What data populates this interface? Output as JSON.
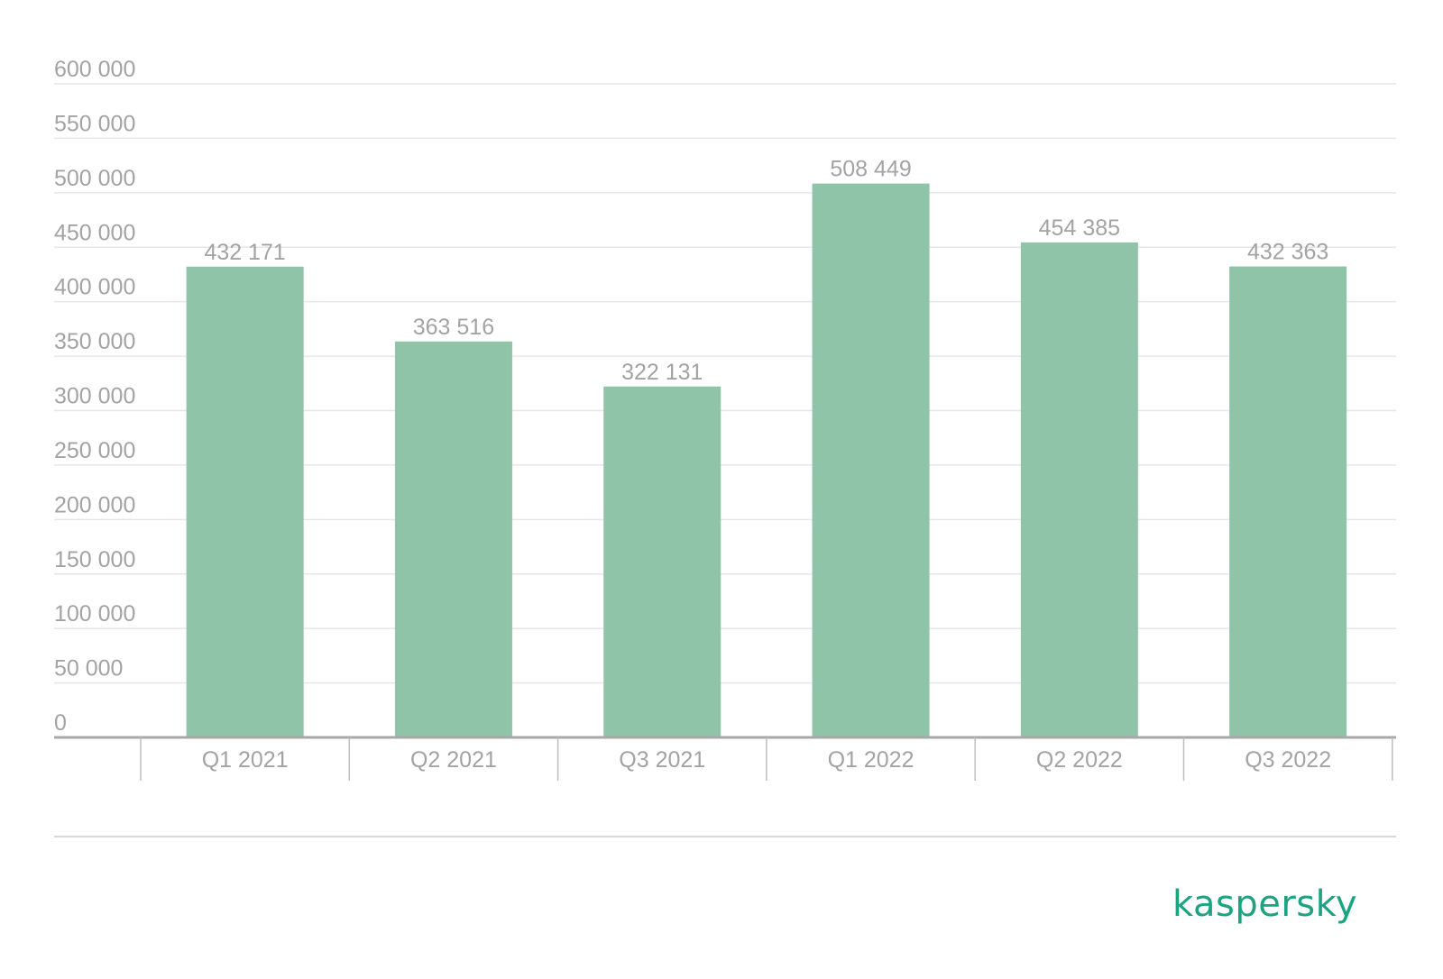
{
  "chart_data": {
    "type": "bar",
    "categories": [
      "Q1 2021",
      "Q2 2021",
      "Q3 2021",
      "Q1 2022",
      "Q2 2022",
      "Q3 2022"
    ],
    "values": [
      432171,
      363516,
      322131,
      508449,
      454385,
      432363
    ],
    "data_labels": [
      "432 171",
      "363 516",
      "322 131",
      "508 449",
      "454 385",
      "432 363"
    ],
    "y_ticks": [
      0,
      50000,
      100000,
      150000,
      200000,
      250000,
      300000,
      350000,
      400000,
      450000,
      500000,
      550000,
      600000
    ],
    "y_tick_labels": [
      "0",
      "50 000",
      "100 000",
      "150 000",
      "200 000",
      "250 000",
      "300 000",
      "350 000",
      "400 000",
      "450 000",
      "500 000",
      "550 000",
      "600 000"
    ],
    "ylim": [
      0,
      600000
    ],
    "title": "",
    "xlabel": "",
    "ylabel": "",
    "grid": true,
    "legend": "none",
    "bar_color": "#90c4a8",
    "text_color": "#a3a3a3"
  },
  "brand": {
    "name": "kaspersky",
    "color": "#1da382"
  }
}
